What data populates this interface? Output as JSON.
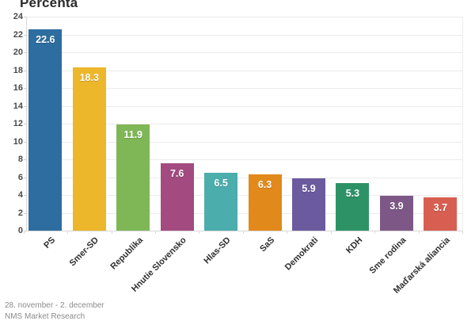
{
  "title": "Percentá",
  "footer": {
    "period": "28. november - 2. december",
    "source": "NMS Market Research"
  },
  "chart_data": {
    "type": "bar",
    "title": "Percentá",
    "categories": [
      "PS",
      "Smer-SD",
      "Republika",
      "Hnutie Slovensko",
      "Hlas-SD",
      "SaS",
      "Demokrati",
      "KDH",
      "Sme rodina",
      "Maďarská aliancia"
    ],
    "values": [
      22.6,
      18.3,
      11.9,
      7.6,
      6.5,
      6.3,
      5.9,
      5.3,
      3.9,
      3.7
    ],
    "value_labels": [
      "22.6",
      "18.3",
      "11.9",
      "7.6",
      "6.5",
      "6.3",
      "5.9",
      "5.3",
      "3.9",
      "3.7"
    ],
    "bar_colors": [
      "#2d6d9f",
      "#ecb72a",
      "#7fb757",
      "#a34a80",
      "#4badac",
      "#e2891b",
      "#6b5b9e",
      "#2d9367",
      "#7d5886",
      "#d75f51"
    ],
    "xlabel": "",
    "ylabel": "",
    "ylim": [
      0,
      24
    ],
    "ytick_step": 2,
    "yticks": [
      0,
      2,
      4,
      6,
      8,
      10,
      12,
      14,
      16,
      18,
      20,
      22,
      24
    ],
    "grid": "horizontal",
    "legend": "none",
    "value_label_position": "inside-top",
    "value_label_color": "#ffffff"
  }
}
